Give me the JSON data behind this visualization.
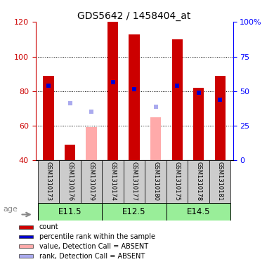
{
  "title": "GDS5642 / 1458404_at",
  "samples": [
    "GSM1310173",
    "GSM1310176",
    "GSM1310179",
    "GSM1310174",
    "GSM1310177",
    "GSM1310180",
    "GSM1310175",
    "GSM1310178",
    "GSM1310181"
  ],
  "age_groups": [
    {
      "label": "E11.5",
      "start": 0,
      "end": 3
    },
    {
      "label": "E12.5",
      "start": 3,
      "end": 6
    },
    {
      "label": "E14.5",
      "start": 6,
      "end": 9
    }
  ],
  "count_values": [
    89,
    49,
    null,
    120,
    113,
    null,
    110,
    82,
    89
  ],
  "count_absent": [
    null,
    null,
    59,
    null,
    null,
    65,
    null,
    null,
    null
  ],
  "rank_values": [
    83,
    null,
    null,
    85,
    81,
    null,
    83,
    79,
    75
  ],
  "rank_absent": [
    null,
    73,
    68,
    null,
    null,
    71,
    null,
    null,
    null
  ],
  "ylim_left": [
    40,
    120
  ],
  "ylim_right": [
    0,
    100
  ],
  "left_ticks": [
    40,
    60,
    80,
    100,
    120
  ],
  "right_ticks": [
    0,
    25,
    50,
    75,
    100
  ],
  "right_tick_labels": [
    "0",
    "25",
    "50",
    "75",
    "100%"
  ],
  "bar_width": 0.5,
  "count_color": "#cc0000",
  "count_absent_color": "#ffaaaa",
  "rank_color": "#0000cc",
  "rank_absent_color": "#aaaaee",
  "grid_dotted_at": [
    60,
    80,
    100
  ],
  "age_bg_color": "#99ee99",
  "legend_items": [
    {
      "color": "#cc0000",
      "label": "count"
    },
    {
      "color": "#0000cc",
      "label": "percentile rank within the sample"
    },
    {
      "color": "#ffaaaa",
      "label": "value, Detection Call = ABSENT"
    },
    {
      "color": "#aaaaee",
      "label": "rank, Detection Call = ABSENT"
    }
  ]
}
